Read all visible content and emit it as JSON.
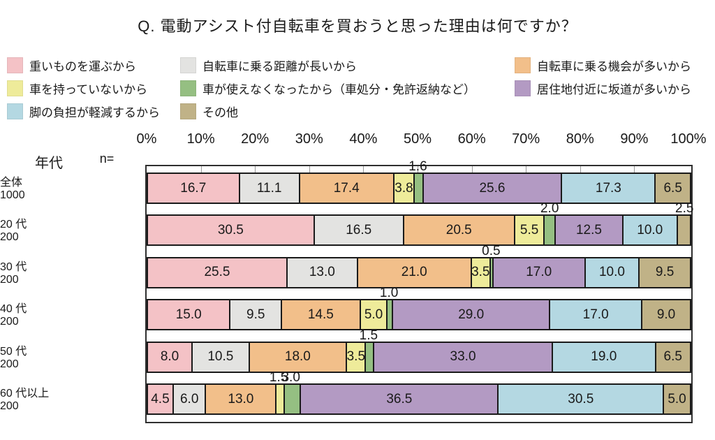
{
  "title": "Q. 電動アシスト付自転車を買おうと思った理由は何ですか？",
  "table_header": {
    "age": "年代",
    "n": "n="
  },
  "colors": {
    "border": "#1a1a1a",
    "tick": "#9a9a9a"
  },
  "chart_data": {
    "type": "bar",
    "subtype": "horizontal-stacked-percent",
    "title": "Q. 電動アシスト付自転車を買おうと思った理由は何ですか？",
    "axis_range": [
      0,
      100
    ],
    "x_ticks": [
      "0%",
      "10%",
      "20%",
      "30%",
      "40%",
      "50%",
      "60%",
      "70%",
      "80%",
      "90%",
      "100%"
    ],
    "legend_position": "top",
    "grid": false,
    "segments": [
      {
        "label": "重いものを運ぶから",
        "color": "#F4C2C6"
      },
      {
        "label": "自転車に乗る距離が長いから",
        "color": "#E3E3E1"
      },
      {
        "label": "自転車に乗る機会が多いから",
        "color": "#F2BF8A"
      },
      {
        "label": "車を持っていないから",
        "color": "#EEEB9A"
      },
      {
        "label": "車が使えなくなったから（車処分・免許返納など）",
        "color": "#95BF82"
      },
      {
        "label": "居住地付近に坂道が多いから",
        "color": "#B39AC3"
      },
      {
        "label": "脚の負担が軽減するから",
        "color": "#B4D8E2"
      },
      {
        "label": "その他",
        "color": "#C0B287"
      }
    ],
    "rows": [
      {
        "label": "全体",
        "n": "1000",
        "values": [
          16.7,
          11.1,
          17.4,
          3.8,
          1.6,
          25.6,
          17.3,
          6.5
        ],
        "outside": [
          4
        ]
      },
      {
        "label": "20 代",
        "n": "200",
        "values": [
          30.5,
          16.5,
          20.5,
          5.5,
          2.0,
          12.5,
          10.0,
          2.5
        ],
        "outside": [
          4,
          7
        ]
      },
      {
        "label": "30 代",
        "n": "200",
        "values": [
          25.5,
          13.0,
          21.0,
          3.5,
          0.5,
          17.0,
          10.0,
          9.5
        ],
        "outside": [
          4
        ]
      },
      {
        "label": "40 代",
        "n": "200",
        "values": [
          15.0,
          9.5,
          14.5,
          5.0,
          1.0,
          29.0,
          17.0,
          9.0
        ],
        "outside": [
          4
        ]
      },
      {
        "label": "50 代",
        "n": "200",
        "values": [
          8.0,
          10.5,
          18.0,
          3.5,
          1.5,
          33.0,
          19.0,
          6.5
        ],
        "outside": [
          4
        ]
      },
      {
        "label": "60 代以上",
        "n": "200",
        "values": [
          4.5,
          6.0,
          13.0,
          1.5,
          3.0,
          36.5,
          30.5,
          5.0
        ],
        "outside": [
          3,
          4
        ]
      }
    ]
  }
}
